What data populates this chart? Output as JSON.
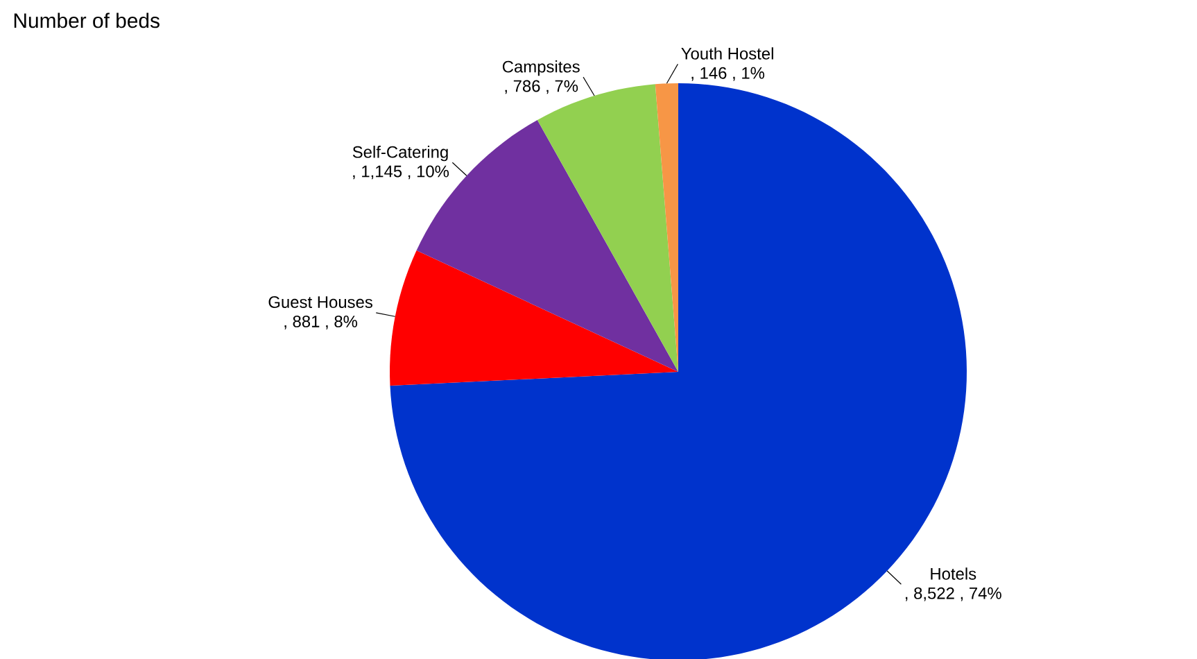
{
  "chart_data": {
    "type": "pie",
    "subtitle": "Number of beds",
    "categories": [
      "Hotels",
      "Guest Houses",
      "Self-Catering",
      "Campsites",
      "Youth Hostel"
    ],
    "values": [
      8522,
      881,
      1145,
      786,
      146
    ],
    "value_labels": [
      ",  8,522 , 74%",
      ", 881 , 8%",
      ", 1,145 , 10%",
      ", 786 , 7%",
      ",  146 , 1%"
    ],
    "colors": [
      "#0033cc",
      "#ff0000",
      "#7030a0",
      "#92d050",
      "#f79646"
    ]
  }
}
